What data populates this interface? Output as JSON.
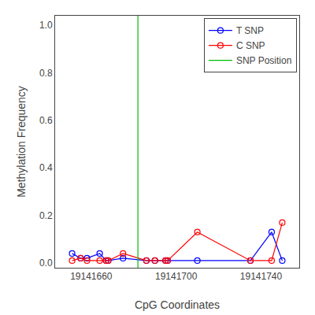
{
  "chart_data": {
    "type": "line",
    "x_label": "CpG Coordinates",
    "y_label": "Methylation Frequency",
    "x": [
      19141651,
      19141655,
      19141658,
      19141664,
      19141667,
      19141668,
      19141675,
      19141686,
      19141690,
      19141695,
      19141696,
      19141710,
      19141735,
      19141745,
      19141750
    ],
    "series": [
      {
        "name": "T SNP",
        "color": "#0000FF",
        "marker": "circle-open",
        "values": [
          0.04,
          0.02,
          0.02,
          0.04,
          0.01,
          0.01,
          0.02,
          0.01,
          0.01,
          0.01,
          0.01,
          0.01,
          0.01,
          0.13,
          0.01
        ]
      },
      {
        "name": "C SNP",
        "color": "#FF0000",
        "marker": "circle-open",
        "values": [
          0.01,
          0.02,
          0.01,
          0.01,
          0.01,
          0.01,
          0.04,
          0.01,
          0.01,
          0.01,
          0.01,
          0.13,
          0.01,
          0.01,
          0.17
        ]
      },
      {
        "name": "SNP Position",
        "type": "vline",
        "color": "#00BB00",
        "x": 19141682
      }
    ],
    "xlim": [
      19141643,
      19141758
    ],
    "xticks": [
      19141660,
      19141700,
      19141740
    ],
    "ylim": [
      -0.02,
      1.04
    ],
    "yticks": [
      {
        "value": 0,
        "label": "0.0"
      },
      0.2,
      0.4,
      0.6,
      0.8,
      {
        "value": 1,
        "label": "1.0"
      }
    ],
    "grid": false,
    "legend": "upper right"
  }
}
